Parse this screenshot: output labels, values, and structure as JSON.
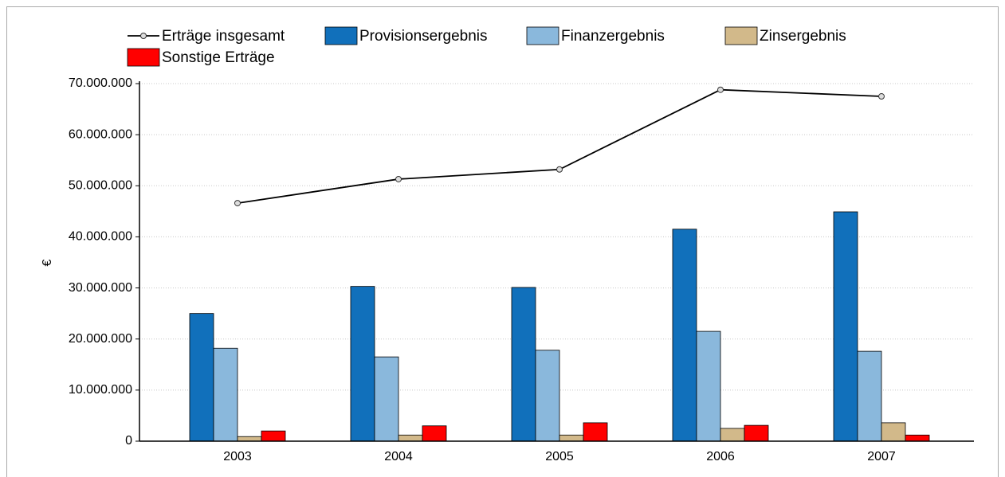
{
  "chart_data": {
    "type": "bar",
    "ylabel": "€",
    "categories": [
      "2003",
      "2004",
      "2005",
      "2006",
      "2007"
    ],
    "series": [
      {
        "name": "Erträge insgesamt",
        "type": "line",
        "color": "#000000",
        "values": [
          46600000,
          51300000,
          53200000,
          68800000,
          67500000
        ]
      },
      {
        "name": "Provisionsergebnis",
        "type": "bar",
        "color": "#1170bb",
        "values": [
          25000000,
          30300000,
          30100000,
          41500000,
          44900000
        ]
      },
      {
        "name": "Finanzergebnis",
        "type": "bar",
        "color": "#8ab8dc",
        "values": [
          18200000,
          16500000,
          17800000,
          21500000,
          17600000
        ]
      },
      {
        "name": "Zinsergebnis",
        "type": "bar",
        "color": "#d2b98a",
        "values": [
          900000,
          1200000,
          1200000,
          2500000,
          3600000
        ]
      },
      {
        "name": "Sonstige Erträge",
        "type": "bar",
        "color": "#ff0000",
        "values": [
          2000000,
          3000000,
          3600000,
          3100000,
          1200000
        ]
      }
    ],
    "ylim": [
      0,
      70000000
    ],
    "yticks": [
      0,
      {
        "value": 10000000,
        "label": "10.000.000"
      },
      {
        "value": 20000000,
        "label": "20.000.000"
      },
      {
        "value": 30000000,
        "label": "30.000.000"
      },
      {
        "value": 40000000,
        "label": "40.000.000"
      },
      {
        "value": 50000000,
        "label": "50.000.000"
      },
      {
        "value": 60000000,
        "label": "60.000.000"
      },
      {
        "value": 70000000,
        "label": "70.000.000"
      }
    ],
    "grid": true
  }
}
